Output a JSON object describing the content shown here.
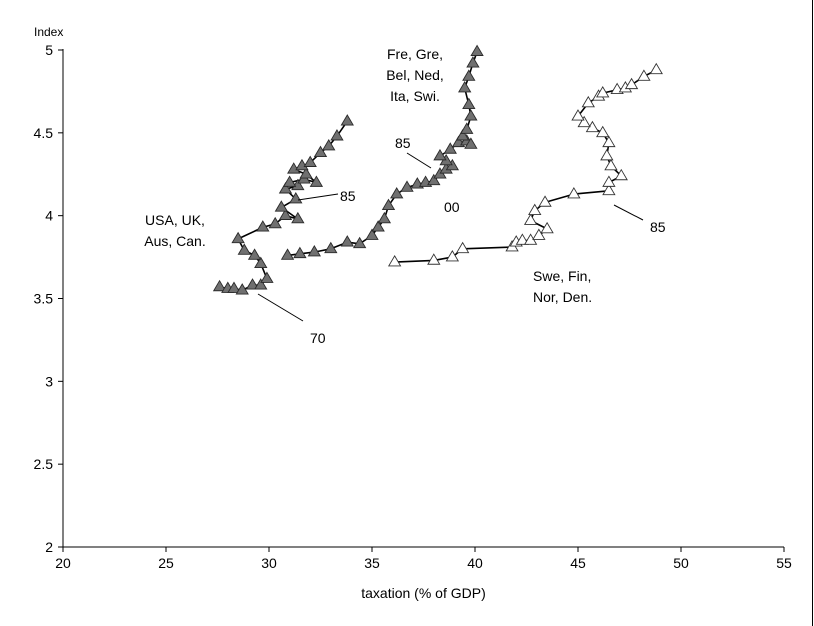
{
  "chart_data": {
    "type": "scatter",
    "title": "",
    "xlabel": "taxation (% of GDP)",
    "ylabel": "Index",
    "xlim": [
      20,
      55
    ],
    "ylim": [
      2,
      5
    ],
    "xticks": [
      "20",
      "25",
      "30",
      "35",
      "40",
      "45",
      "50",
      "55"
    ],
    "yticks": [
      "2",
      "2.5",
      "3",
      "3.5",
      "4",
      "4.5",
      "5"
    ],
    "grid": false,
    "legend": "none",
    "series": [
      {
        "label_lines": [
          "USA, UK,",
          "Aus, Can."
        ],
        "marker": "filled-triangle",
        "color": "#707070",
        "x": [
          27.6,
          28.0,
          28.3,
          28.7,
          29.2,
          29.6,
          29.9,
          29.6,
          29.3,
          28.8,
          28.5,
          29.7,
          30.3,
          30.8,
          31.4,
          30.6,
          31.3,
          30.8,
          31.4,
          31.0,
          31.7,
          32.3,
          31.8,
          31.2,
          31.6,
          32.0,
          32.5,
          32.9,
          33.3,
          33.8
        ],
        "y": [
          3.57,
          3.56,
          3.56,
          3.55,
          3.58,
          3.58,
          3.62,
          3.71,
          3.76,
          3.79,
          3.86,
          3.93,
          3.95,
          4.0,
          3.98,
          4.05,
          4.1,
          4.16,
          4.18,
          4.2,
          4.22,
          4.2,
          4.25,
          4.28,
          4.3,
          4.32,
          4.38,
          4.42,
          4.48,
          4.57
        ]
      },
      {
        "label_lines": [
          "Fre, Gre,",
          "Bel, Ned,",
          "Ita, Swi."
        ],
        "marker": "filled-triangle",
        "color": "#707070",
        "x": [
          30.9,
          31.5,
          32.2,
          33.0,
          33.8,
          34.4,
          35.0,
          35.3,
          35.6,
          35.8,
          36.2,
          36.7,
          37.2,
          37.6,
          38.0,
          38.3,
          38.6,
          38.9,
          38.6,
          38.3,
          38.8,
          39.2,
          39.6,
          39.8,
          39.4,
          39.6,
          39.8,
          39.7,
          39.5,
          39.7,
          39.9,
          40.1
        ],
        "y": [
          3.76,
          3.77,
          3.78,
          3.8,
          3.84,
          3.83,
          3.88,
          3.93,
          3.98,
          4.06,
          4.13,
          4.17,
          4.19,
          4.2,
          4.21,
          4.25,
          4.28,
          4.3,
          4.33,
          4.36,
          4.4,
          4.44,
          4.45,
          4.43,
          4.48,
          4.52,
          4.6,
          4.67,
          4.77,
          4.84,
          4.92,
          4.99
        ]
      },
      {
        "label_lines": [
          "Swe, Fin,",
          "Nor, Den."
        ],
        "marker": "open-triangle",
        "color": "#ffffff",
        "x": [
          36.1,
          38.0,
          38.9,
          39.4,
          41.8,
          42.0,
          42.3,
          42.7,
          43.1,
          43.5,
          42.7,
          42.9,
          43.4,
          44.8,
          46.5,
          46.5,
          47.1,
          46.6,
          46.4,
          46.5,
          46.2,
          45.7,
          45.3,
          45.0,
          45.5,
          46.0,
          46.2,
          46.9,
          47.3,
          47.6,
          48.2,
          48.8
        ],
        "y": [
          3.72,
          3.73,
          3.75,
          3.8,
          3.81,
          3.84,
          3.85,
          3.85,
          3.88,
          3.92,
          3.97,
          4.03,
          4.08,
          4.13,
          4.15,
          4.2,
          4.24,
          4.3,
          4.36,
          4.44,
          4.5,
          4.53,
          4.56,
          4.6,
          4.68,
          4.72,
          4.74,
          4.76,
          4.77,
          4.79,
          4.84,
          4.88
        ]
      }
    ],
    "annotations": [
      {
        "text": "85"
      },
      {
        "text": "70"
      },
      {
        "text": "85"
      },
      {
        "text": "00"
      },
      {
        "text": "85"
      }
    ]
  }
}
